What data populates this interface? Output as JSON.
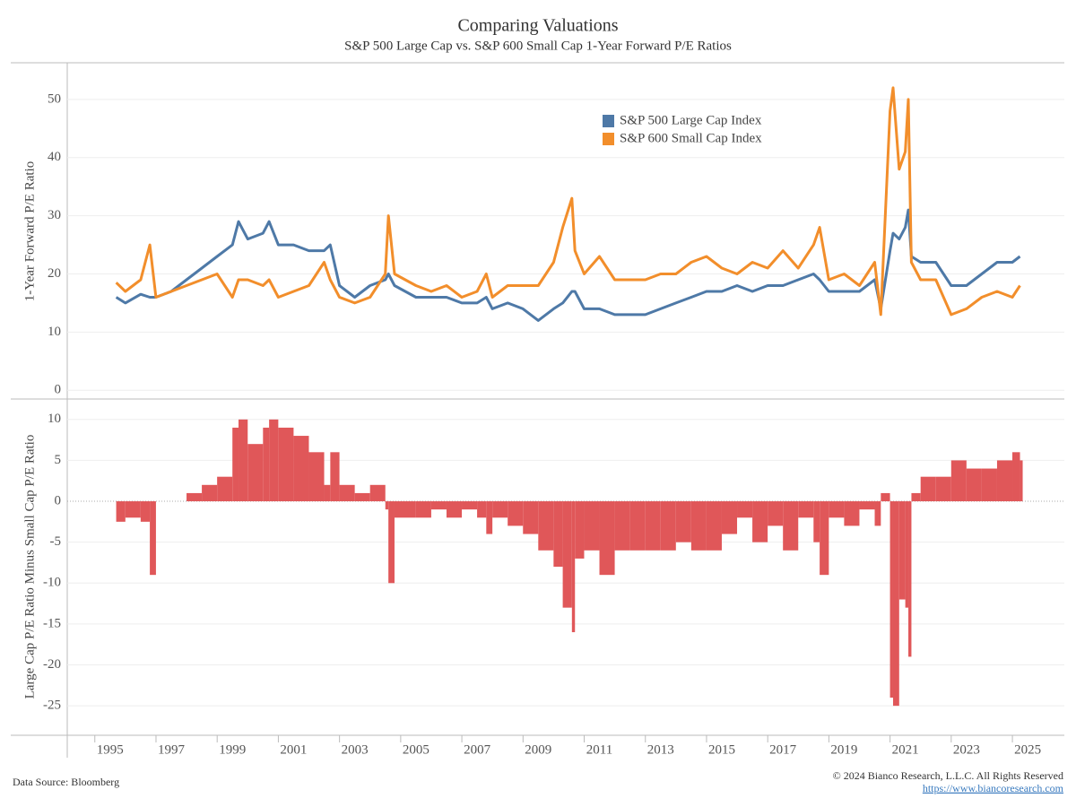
{
  "chart_data": [
    {
      "type": "line",
      "title": "Comparing Valuations",
      "subtitle": "S&P 500 Large Cap vs. S&P 600 Small Cap 1-Year Forward P/E Ratios",
      "ylabel": "1-Year Forward P/E Ratio",
      "x": [
        1995.2,
        1995.5,
        1996.0,
        1996.3,
        1996.5,
        1997.0,
        1997.5,
        1998.0,
        1998.5,
        1999.0,
        1999.2,
        1999.5,
        2000.0,
        2000.2,
        2000.5,
        2001.0,
        2001.5,
        2002.0,
        2002.2,
        2002.5,
        2003.0,
        2003.5,
        2004.0,
        2004.1,
        2004.3,
        2005.0,
        2005.5,
        2006.0,
        2006.5,
        2007.0,
        2007.3,
        2007.5,
        2008.0,
        2008.5,
        2009.0,
        2009.5,
        2009.8,
        2010.1,
        2010.2,
        2010.5,
        2011.0,
        2011.5,
        2012.0,
        2012.5,
        2013.0,
        2013.5,
        2014.0,
        2014.5,
        2015.0,
        2015.5,
        2016.0,
        2016.5,
        2017.0,
        2017.5,
        2018.0,
        2018.2,
        2018.5,
        2019.0,
        2019.5,
        2020.0,
        2020.2,
        2020.5,
        2020.6,
        2020.8,
        2021.0,
        2021.1,
        2021.2,
        2021.5,
        2022.0,
        2022.5,
        2023.0,
        2023.5,
        2024.0,
        2024.5,
        2024.75
      ],
      "series": [
        {
          "name": "S&P 500 Large Cap Index",
          "color": "#4e79a7",
          "values": [
            16,
            15,
            16.5,
            16,
            16,
            17,
            19,
            21,
            23,
            25,
            29,
            26,
            27,
            29,
            25,
            25,
            24,
            24,
            25,
            18,
            16,
            18,
            19,
            20,
            18,
            16,
            16,
            16,
            15,
            15,
            16,
            14,
            15,
            14,
            12,
            14,
            15,
            17,
            17,
            14,
            14,
            13,
            13,
            13,
            14,
            15,
            16,
            17,
            17,
            18,
            17,
            18,
            18,
            19,
            20,
            19,
            17,
            17,
            17,
            19,
            14,
            24,
            27,
            26,
            28,
            31,
            23,
            22,
            22,
            18,
            18,
            20,
            22,
            22,
            23
          ]
        },
        {
          "name": "S&P 600 Small Cap Index",
          "color": "#f28e2b",
          "values": [
            18.5,
            17,
            19,
            25,
            16,
            17,
            18,
            19,
            20,
            16,
            19,
            19,
            18,
            19,
            16,
            17,
            18,
            22,
            19,
            16,
            15,
            16,
            20,
            30,
            20,
            18,
            17,
            18,
            16,
            17,
            20,
            16,
            18,
            18,
            18,
            22,
            28,
            33,
            24,
            20,
            23,
            19,
            19,
            19,
            20,
            20,
            22,
            23,
            21,
            20,
            22,
            21,
            24,
            21,
            25,
            28,
            19,
            20,
            18,
            22,
            13,
            48,
            52,
            38,
            41,
            50,
            22,
            19,
            19,
            13,
            14,
            16,
            17,
            16,
            18
          ]
        }
      ],
      "xlim": [
        1993.6,
        2026.2
      ],
      "xticks": [
        1995,
        1997,
        1999,
        2001,
        2003,
        2005,
        2007,
        2009,
        2011,
        2013,
        2015,
        2017,
        2019,
        2021,
        2023,
        2025
      ],
      "ylim": [
        -1.5,
        56.3
      ],
      "yticks": [
        0,
        10,
        20,
        30,
        40,
        50
      ],
      "grid": true,
      "legend": "top-right"
    },
    {
      "type": "bar",
      "ylabel": "Large Cap P/E Ratio Minus Small Cap P/E Ratio",
      "color": "#e05759",
      "x": [
        1995.2,
        1995.5,
        1996.0,
        1996.3,
        1996.5,
        1997.0,
        1997.5,
        1998.0,
        1998.5,
        1999.0,
        1999.2,
        1999.5,
        2000.0,
        2000.2,
        2000.5,
        2001.0,
        2001.5,
        2002.0,
        2002.2,
        2002.5,
        2003.0,
        2003.5,
        2004.0,
        2004.1,
        2004.3,
        2005.0,
        2005.5,
        2006.0,
        2006.5,
        2007.0,
        2007.3,
        2007.5,
        2008.0,
        2008.5,
        2009.0,
        2009.5,
        2009.8,
        2010.1,
        2010.2,
        2010.5,
        2011.0,
        2011.5,
        2012.0,
        2012.5,
        2013.0,
        2013.5,
        2014.0,
        2014.5,
        2015.0,
        2015.5,
        2016.0,
        2016.5,
        2017.0,
        2017.5,
        2018.0,
        2018.2,
        2018.5,
        2019.0,
        2019.5,
        2020.0,
        2020.2,
        2020.5,
        2020.6,
        2020.8,
        2021.0,
        2021.1,
        2021.2,
        2021.5,
        2022.0,
        2022.5,
        2023.0,
        2023.5,
        2024.0,
        2024.5,
        2024.75
      ],
      "values": [
        -2.5,
        -2,
        -2.5,
        -9,
        0,
        0,
        1,
        2,
        3,
        9,
        10,
        7,
        9,
        10,
        9,
        8,
        6,
        2,
        6,
        2,
        1,
        2,
        -1,
        -10,
        -2,
        -2,
        -1,
        -2,
        -1,
        -2,
        -4,
        -2,
        -3,
        -4,
        -6,
        -8,
        -13,
        -16,
        -7,
        -6,
        -9,
        -6,
        -6,
        -6,
        -6,
        -5,
        -6,
        -6,
        -4,
        -2,
        -5,
        -3,
        -6,
        -2,
        -5,
        -9,
        -2,
        -3,
        -1,
        -3,
        1,
        -24,
        -25,
        -12,
        -13,
        -19,
        1,
        3,
        3,
        5,
        4,
        4,
        5,
        6,
        5
      ],
      "xlim": [
        1993.6,
        2026.2
      ],
      "xticks": [
        1995,
        1997,
        1999,
        2001,
        2003,
        2005,
        2007,
        2009,
        2011,
        2013,
        2015,
        2017,
        2019,
        2021,
        2023,
        2025
      ],
      "ylim": [
        -28.6,
        12.5
      ],
      "yticks": [
        10,
        5,
        0,
        -5,
        -10,
        -15,
        -20,
        -25
      ],
      "grid": true
    }
  ],
  "footer": {
    "source": "Data Source: Bloomberg",
    "copyright": "© 2024 Bianco Research, L.L.C. All Rights Reserved",
    "url": "https://www.biancoresearch.com"
  }
}
